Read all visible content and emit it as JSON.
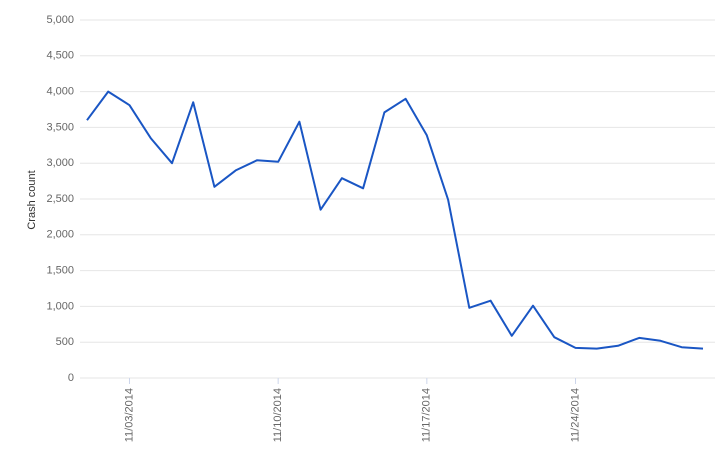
{
  "chart_data": {
    "type": "line",
    "y_label": "Crash count",
    "categories": [
      null,
      null,
      "11/03/2014",
      null,
      null,
      null,
      null,
      null,
      null,
      "11/10/2014",
      null,
      null,
      null,
      null,
      null,
      null,
      "11/17/2014",
      null,
      null,
      null,
      null,
      null,
      null,
      "11/24/2014",
      null,
      null,
      null,
      null,
      null,
      null
    ],
    "values": [
      3600,
      4000,
      3810,
      3350,
      3000,
      3850,
      2670,
      2900,
      3040,
      3020,
      3580,
      2350,
      2790,
      2650,
      3710,
      3900,
      3390,
      2490,
      980,
      1080,
      590,
      1010,
      570,
      420,
      410,
      450,
      560,
      520,
      430,
      410
    ],
    "color": "#1a56c4",
    "ylim": [
      0,
      5000
    ],
    "yticks": [
      0,
      500,
      {
        "value": 1000,
        "label": "1,000"
      },
      {
        "value": 1500,
        "label": "1,500"
      },
      {
        "value": 2000,
        "label": "2,000"
      },
      {
        "value": 2500,
        "label": "2,500"
      },
      {
        "value": 3000,
        "label": "3,000"
      },
      {
        "value": 3500,
        "label": "3,500"
      },
      {
        "value": 4000,
        "label": "4,000"
      },
      {
        "value": 4500,
        "label": "4,500"
      },
      {
        "value": 5000,
        "label": "5,000"
      }
    ],
    "grid": true
  }
}
